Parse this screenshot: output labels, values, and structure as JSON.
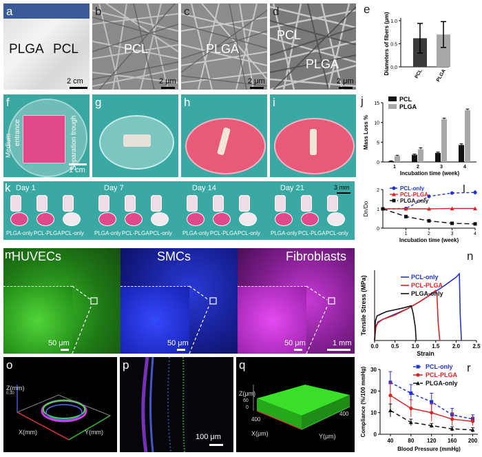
{
  "panels": {
    "a": {
      "label": "a",
      "text_left": "PLGA",
      "text_right": "PCL",
      "scale": "2 cm"
    },
    "b": {
      "label": "b",
      "title": "PCL",
      "scale": "2 μm"
    },
    "c": {
      "label": "c",
      "title": "PLGA",
      "scale": "2 μm"
    },
    "d": {
      "label": "d",
      "title_top": "PCL",
      "title_bottom": "PLGA",
      "scale": "2 μm"
    },
    "f": {
      "label": "f",
      "text_medium": "Medium",
      "text_entrance": "entrance",
      "text_trough": "Separation trough",
      "scale": "1 cm"
    },
    "g": {
      "label": "g"
    },
    "h": {
      "label": "h"
    },
    "i": {
      "label": "i"
    },
    "k": {
      "label": "k",
      "days": [
        "Day 1",
        "Day 7",
        "Day 14",
        "Day 21"
      ],
      "scale": "3 mm",
      "sample_labels": [
        "PLGA-only",
        "PCL-PLGA",
        "PCL-only"
      ]
    },
    "m": {
      "label": "m",
      "titles": [
        "HUVECs",
        "SMCs",
        "Fibroblasts"
      ],
      "scales": [
        "50 μm",
        "50 μm",
        "50 μm"
      ],
      "scale_large": "1 mm"
    },
    "o": {
      "label": "o",
      "z_axis": "Z(mm)",
      "x_axis": "X(mm)",
      "y_axis": "Y(mm)",
      "z_tick": "0.30"
    },
    "p": {
      "label": "p",
      "scale": "100 μm"
    },
    "q": {
      "label": "q",
      "z_axis": "Z(μm)",
      "x_axis": "X(μm)",
      "y_axis": "Y(μm)",
      "z_ticks": [
        "60",
        "0"
      ],
      "x_tick": "400",
      "y_tick": "400"
    }
  },
  "chart_data": [
    {
      "id": "e",
      "label": "e",
      "type": "bar",
      "categories": [
        "PCL",
        "PLGA"
      ],
      "values": [
        0.62,
        0.7
      ],
      "errors": [
        0.32,
        0.28
      ],
      "colors": [
        "#3a3a3a",
        "#a8a8a8"
      ],
      "ylabel": "Diameters of fibers (μm)",
      "ylim": [
        0,
        1.0
      ],
      "yticks": [
        "0.0",
        "0.5",
        "1.0"
      ]
    },
    {
      "id": "j",
      "label": "j",
      "type": "bar",
      "categories": [
        "1",
        "2",
        "3",
        "4"
      ],
      "series": [
        {
          "name": "PCL",
          "color": "#111111",
          "values": [
            0.2,
            1.8,
            2.3,
            4.3
          ],
          "errors": [
            0.1,
            0.2,
            0.2,
            0.3
          ]
        },
        {
          "name": "PLGA",
          "color": "#a8a8a8",
          "values": [
            1.5,
            3.2,
            10.8,
            13.1
          ],
          "errors": [
            0.2,
            0.4,
            0.3,
            0.3
          ]
        }
      ],
      "xlabel": "Incubation time (week)",
      "ylabel": "Mass Loss %",
      "ylim": [
        0,
        15
      ],
      "yticks": [
        "0",
        "5",
        "10",
        "15"
      ]
    },
    {
      "id": "l",
      "label": "l",
      "type": "line",
      "x": [
        0,
        1,
        2,
        3,
        4
      ],
      "series": [
        {
          "name": "PCL-only",
          "color": "#2233cc",
          "values": [
            1.0,
            1.02,
            1.65,
            1.82,
            1.85
          ],
          "errors": [
            0.02,
            0.05,
            0.1,
            0.05,
            0.12
          ],
          "dash": "4,3",
          "marker": "circle"
        },
        {
          "name": "PCL-PLGA",
          "color": "#dd2222",
          "values": [
            1.0,
            1.0,
            1.0,
            1.02,
            1.02
          ],
          "errors": [
            0.02,
            0.03,
            0.03,
            0.03,
            0.03
          ],
          "dash": "",
          "marker": "triangle"
        },
        {
          "name": "PLGA-only",
          "color": "#111111",
          "values": [
            1.0,
            0.6,
            0.38,
            0.25,
            0.22
          ],
          "errors": [
            0.02,
            0.08,
            0.05,
            0.05,
            0.07
          ],
          "dash": "7,4",
          "marker": "square"
        }
      ],
      "xlabel": "Incubation time (week)",
      "ylabel": "Dn/Do",
      "xlim": [
        0,
        4
      ],
      "ylim": [
        0,
        2
      ],
      "xticks": [
        "1",
        "2",
        "3",
        "4"
      ],
      "yticks": [
        "0",
        "1",
        "2"
      ]
    },
    {
      "id": "n",
      "label": "n",
      "type": "line",
      "series": [
        {
          "name": "PCL-only",
          "color": "#2233cc",
          "x": [
            0,
            0.03,
            0.08,
            0.2,
            0.5,
            0.8,
            1.1,
            1.4,
            1.7,
            2.0,
            2.08,
            2.1,
            2.13
          ],
          "values": [
            0,
            1.6,
            2.1,
            2.4,
            3.0,
            3.6,
            4.4,
            5.3,
            6.2,
            7.2,
            7.6,
            3.0,
            0
          ]
        },
        {
          "name": "PCL-PLGA",
          "color": "#dd2222",
          "x": [
            0,
            0.03,
            0.08,
            0.2,
            0.5,
            0.8,
            1.1,
            1.3,
            1.5,
            1.53,
            1.56,
            1.6
          ],
          "values": [
            0,
            1.5,
            2.0,
            2.4,
            2.9,
            3.6,
            4.4,
            5.0,
            5.7,
            5.2,
            2.0,
            0
          ]
        },
        {
          "name": "PLGA-only",
          "color": "#111111",
          "x": [
            0,
            0.02,
            0.06,
            0.15,
            0.3,
            0.5,
            0.7,
            0.9,
            0.93,
            0.95,
            1.0,
            1.02
          ],
          "values": [
            0,
            2.2,
            2.8,
            3.0,
            3.3,
            3.5,
            3.7,
            3.95,
            3.4,
            3.0,
            1.5,
            0
          ]
        }
      ],
      "xlabel": "Strain",
      "ylabel": "Tensile Stress (MPa)",
      "xlim": [
        0,
        2.5
      ],
      "ylim": [
        0,
        8
      ],
      "xticks": [
        "0.0",
        "0.5",
        "1.0",
        "1.5",
        "2.0",
        "2.5"
      ]
    },
    {
      "id": "r",
      "label": "r",
      "type": "line",
      "x": [
        40,
        80,
        120,
        160,
        200
      ],
      "series": [
        {
          "name": "PCL-only",
          "color": "#2233cc",
          "values": [
            24,
            19,
            15,
            9,
            7
          ],
          "errors": [
            5,
            4,
            4,
            3,
            2
          ],
          "dash": "4,3",
          "marker": "square"
        },
        {
          "name": "PCL-PLGA",
          "color": "#dd2222",
          "values": [
            18,
            12,
            10,
            7,
            6
          ],
          "errors": [
            6,
            4,
            4,
            3,
            2
          ],
          "dash": "",
          "marker": "circle"
        },
        {
          "name": "PLGA-only",
          "color": "#111111",
          "values": [
            11,
            5.5,
            4,
            2.5,
            2
          ],
          "errors": [
            3,
            1.5,
            1,
            1,
            1
          ],
          "dash": "6,4",
          "marker": "triangle"
        }
      ],
      "xlabel": "Blood Pressure (mmHg)",
      "ylabel": "Compliance (%/100 mmHg)",
      "xlim": [
        20,
        210
      ],
      "ylim": [
        0,
        30
      ],
      "xticks": [
        "40",
        "80",
        "120",
        "160",
        "200"
      ],
      "yticks": [
        "0",
        "10",
        "20",
        "30"
      ]
    }
  ]
}
